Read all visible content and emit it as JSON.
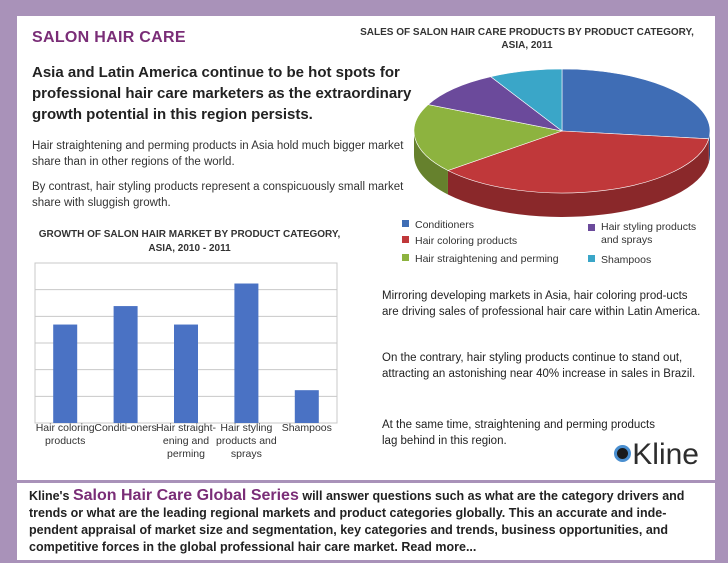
{
  "header": {
    "title": "SALON HAIR CARE",
    "headline": "Asia and Latin America continue to be hot spots for professional hair care marketers as the extraordinary growth potential in this region persists.",
    "para1": "Hair straightening and perming products in Asia hold much bigger market share than in other regions of the world.",
    "para2": "By contrast, hair styling products represent a conspicuously small market share with sluggish growth."
  },
  "right": {
    "p1": "Mirroring developing markets in Asia, hair coloring prod-ucts are driving sales of professional hair care within Latin America.",
    "p2": "On the contrary, hair styling products continue to stand out, attracting an astonishing near 40% increase in sales in Brazil.",
    "p3": "At the same time, straightening and perming products lag behind in this region."
  },
  "brand": {
    "logo": "Kline"
  },
  "footer": {
    "lead": "Kline's",
    "series": "Salon Hair Care Global Series",
    "text": "will answer questions such as what are the category drivers and trends or what are the leading regional markets and product categories globally. This an accurate and inde-pendent appraisal of market size and segmentation, key categories and trends, business opportunities, and competitive forces in the global professional hair care market. Read more..."
  },
  "chart_data": [
    {
      "type": "pie",
      "title": "SALES OF SALON HAIR CARE PRODUCTS BY PRODUCT CATEGORY, ASIA, 2011",
      "categories": [
        "Conditioners",
        "Hair coloring products",
        "Hair straightening and perming",
        "Hair styling products and sprays",
        "Shampoos"
      ],
      "values": [
        27,
        37,
        18,
        10,
        8
      ],
      "colors": [
        "#3f6db5",
        "#c0383a",
        "#8db33f",
        "#6b4a9b",
        "#3aa6c8"
      ],
      "legend": [
        {
          "label": "Conditioners",
          "color": "#3f6db5"
        },
        {
          "label": "Hair coloring products",
          "color": "#c0383a"
        },
        {
          "label": "Hair straightening and perming",
          "color": "#8db33f"
        },
        {
          "label": "Hair styling products and sprays",
          "color": "#6b4a9b"
        },
        {
          "label": "Shampoos",
          "color": "#3aa6c8"
        }
      ]
    },
    {
      "type": "bar",
      "title": "GROWTH OF SALON HAIR MARKET BY PRODUCT CATEGORY, ASIA, 2010 - 2011",
      "categories": [
        "Hair coloring products",
        "Conditi-oners",
        "Hair straight-ening and perming",
        "Hair styling products and sprays",
        "Shampoos"
      ],
      "values": [
        4.8,
        5.7,
        4.8,
        6.8,
        1.6
      ],
      "ylim": [
        0,
        7.8
      ],
      "grid": true,
      "color": "#4a72c4"
    }
  ]
}
